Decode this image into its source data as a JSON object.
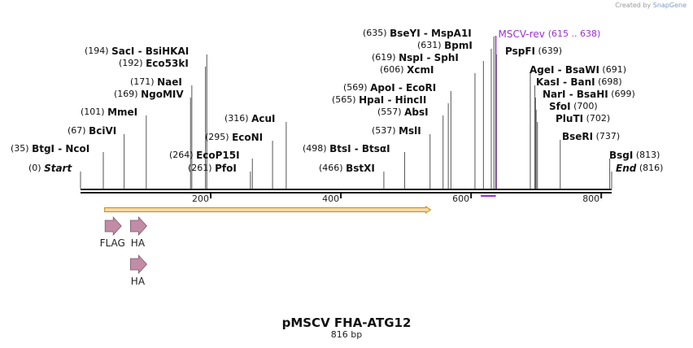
{
  "credit": {
    "prefix": "Created by",
    "brand": "SnapGene"
  },
  "map": {
    "name": "pMSCV FHA-ATG12",
    "length_label": "816 bp",
    "length": 816,
    "ticks": [
      {
        "pos": 200,
        "label": "200"
      },
      {
        "pos": 400,
        "label": "400"
      },
      {
        "pos": 600,
        "label": "600"
      },
      {
        "pos": 800,
        "label": "800"
      }
    ],
    "sites": [
      {
        "pos": 0,
        "pos_label": "(0)",
        "names": [
          "Start"
        ],
        "italic": true
      },
      {
        "pos": 35,
        "pos_label": "(35)",
        "names": [
          "BtgI",
          "NcoI"
        ]
      },
      {
        "pos": 67,
        "pos_label": "(67)",
        "names": [
          "BciVI"
        ]
      },
      {
        "pos": 101,
        "pos_label": "(101)",
        "names": [
          "MmeI"
        ]
      },
      {
        "pos": 169,
        "pos_label": "(169)",
        "names": [
          "NgoMIV"
        ]
      },
      {
        "pos": 171,
        "pos_label": "(171)",
        "names": [
          "NaeI"
        ]
      },
      {
        "pos": 192,
        "pos_label": "(192)",
        "names": [
          "Eco53kI"
        ]
      },
      {
        "pos": 194,
        "pos_label": "(194)",
        "names": [
          "SacI",
          "BsiHKAI"
        ]
      },
      {
        "pos": 261,
        "pos_label": "(261)",
        "names": [
          "PfoI"
        ]
      },
      {
        "pos": 264,
        "pos_label": "(264)",
        "names": [
          "EcoP15I"
        ]
      },
      {
        "pos": 295,
        "pos_label": "(295)",
        "names": [
          "EcoNI"
        ]
      },
      {
        "pos": 316,
        "pos_label": "(316)",
        "names": [
          "AcuI"
        ]
      },
      {
        "pos": 466,
        "pos_label": "(466)",
        "names": [
          "BstXI"
        ]
      },
      {
        "pos": 498,
        "pos_label": "(498)",
        "names": [
          "BtsI",
          "BtsαI"
        ]
      },
      {
        "pos": 537,
        "pos_label": "(537)",
        "names": [
          "MslI"
        ]
      },
      {
        "pos": 557,
        "pos_label": "(557)",
        "names": [
          "AbsI"
        ]
      },
      {
        "pos": 565,
        "pos_label": "(565)",
        "names": [
          "HpaI",
          "HincII"
        ]
      },
      {
        "pos": 569,
        "pos_label": "(569)",
        "names": [
          "ApoI",
          "EcoRI"
        ]
      },
      {
        "pos": 606,
        "pos_label": "(606)",
        "names": [
          "XcmI"
        ]
      },
      {
        "pos": 619,
        "pos_label": "(619)",
        "names": [
          "NspI",
          "SphI"
        ]
      },
      {
        "pos": 631,
        "pos_label": "(631)",
        "names": [
          "BpmI"
        ]
      },
      {
        "pos": 635,
        "pos_label": "(635)",
        "names": [
          "BseYI",
          "MspA1I"
        ]
      },
      {
        "pos": 639,
        "pos_label": "(639)",
        "names": [
          "PspFI"
        ]
      },
      {
        "pos": 691,
        "pos_label": "(691)",
        "names": [
          "AgeI",
          "BsaWI"
        ]
      },
      {
        "pos": 698,
        "pos_label": "(698)",
        "names": [
          "KasI",
          "BanI"
        ]
      },
      {
        "pos": 699,
        "pos_label": "(699)",
        "names": [
          "NarI",
          "BsaHI"
        ]
      },
      {
        "pos": 700,
        "pos_label": "(700)",
        "names": [
          "SfoI"
        ]
      },
      {
        "pos": 702,
        "pos_label": "(702)",
        "names": [
          "PluTI"
        ]
      },
      {
        "pos": 737,
        "pos_label": "(737)",
        "names": [
          "BseRI"
        ]
      },
      {
        "pos": 813,
        "pos_label": "(813)",
        "names": [
          "BsgI"
        ]
      },
      {
        "pos": 816,
        "pos_label": "(816)",
        "names": [
          "End"
        ],
        "italic": true
      }
    ],
    "primer": {
      "name": "MSCV-rev",
      "range_label": "(615 .. 638)",
      "start": 615,
      "end": 638,
      "color": "#9b30d0"
    },
    "orf": {
      "start": 37,
      "end": 538,
      "fill": "#f3d9a4",
      "stroke": "#c98a1a"
    },
    "features": [
      {
        "name": "FLAG",
        "row": 0,
        "center": 49
      },
      {
        "name": "HA",
        "row": 0,
        "center": 88
      },
      {
        "name": "HA",
        "row": 1,
        "center": 88
      }
    ],
    "feature_color": "#c28ca6"
  }
}
